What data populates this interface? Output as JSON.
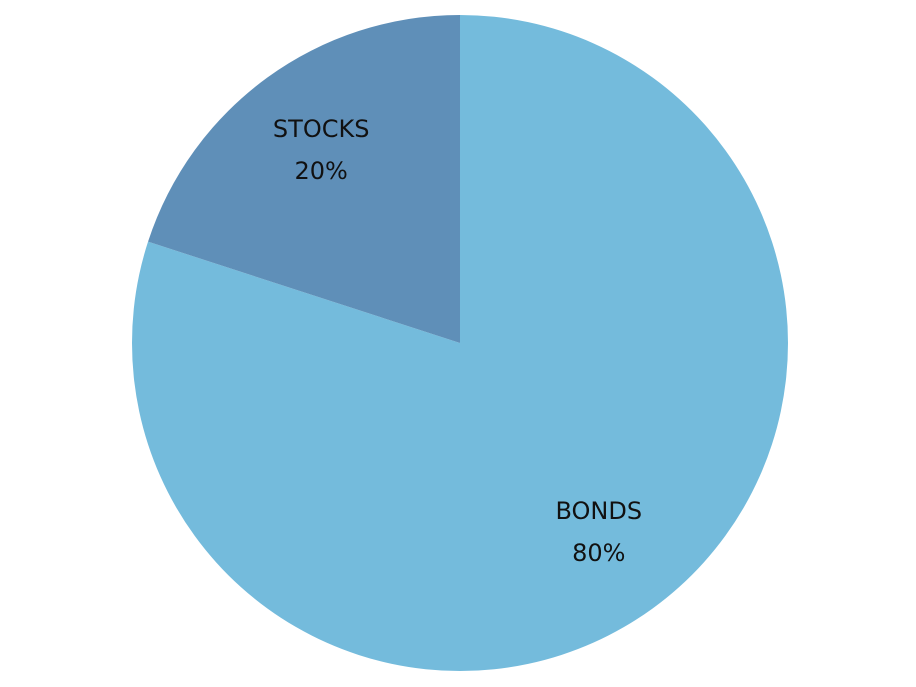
{
  "chart_data": {
    "type": "pie",
    "categories": [
      "BONDS",
      "STOCKS"
    ],
    "values": [
      80,
      20
    ],
    "value_labels": [
      "80%",
      "20%"
    ],
    "colors": [
      "#74bbdc",
      "#5f8fb8"
    ]
  }
}
